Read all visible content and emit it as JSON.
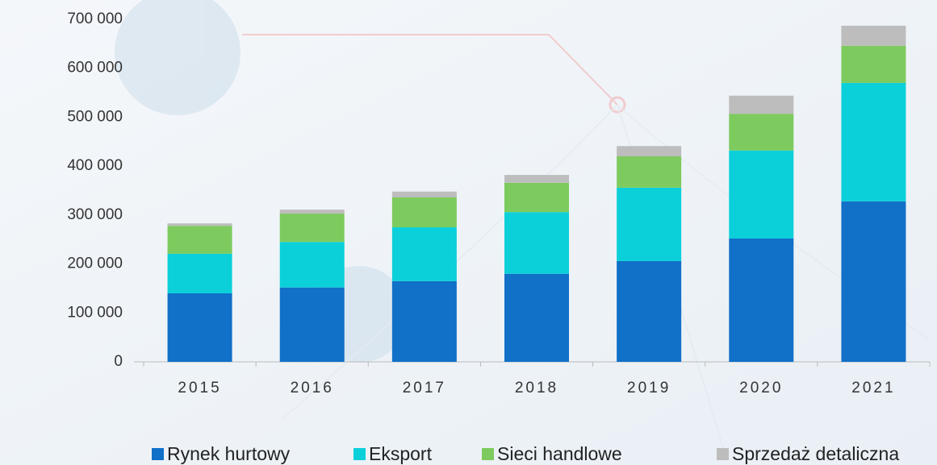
{
  "chart_data": {
    "type": "stacked_bar",
    "categories": [
      "2015",
      "2016",
      "2017",
      "2018",
      "2019",
      "2020",
      "2021"
    ],
    "series": [
      {
        "name": "Rynek hurtowy",
        "color": "#1170c8",
        "values": [
          140000,
          152000,
          165000,
          180000,
          206000,
          252000,
          328000
        ]
      },
      {
        "name": "Eksport",
        "color": "#0bd0d9",
        "values": [
          81000,
          93000,
          110000,
          126000,
          150000,
          180000,
          242000
        ]
      },
      {
        "name": "Sieci handlowe",
        "color": "#7dcb5e",
        "values": [
          57000,
          58000,
          61000,
          60000,
          64000,
          75000,
          76000
        ]
      },
      {
        "name": "Sprzedaż detaliczna",
        "color": "#bdbdbd",
        "values": [
          5000,
          8000,
          12000,
          16000,
          21000,
          37000,
          41000
        ]
      }
    ],
    "ylim": [
      0,
      700000
    ],
    "yticks": [
      0,
      {
        "value": 100000,
        "label": "100 000"
      },
      {
        "value": 200000,
        "label": "200 000"
      },
      {
        "value": 300000,
        "label": "300 000"
      },
      {
        "value": 400000,
        "label": "400 000"
      },
      {
        "value": 500000,
        "label": "500 000"
      },
      {
        "value": 600000,
        "label": "600 000"
      },
      {
        "value": 700000,
        "label": "700 000"
      }
    ],
    "legend": "bottom"
  }
}
